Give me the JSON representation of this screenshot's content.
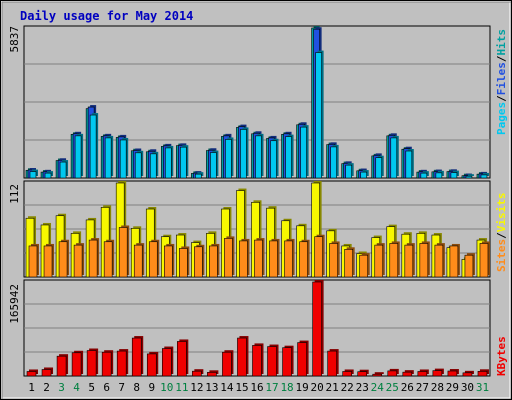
{
  "chart_data": {
    "type": "bar",
    "title": "Daily usage for May 2014",
    "categories": [
      "1",
      "2",
      "3",
      "4",
      "5",
      "6",
      "7",
      "8",
      "9",
      "10",
      "11",
      "12",
      "13",
      "14",
      "15",
      "16",
      "17",
      "18",
      "19",
      "20",
      "21",
      "22",
      "23",
      "24",
      "25",
      "26",
      "27",
      "28",
      "29",
      "30",
      "31"
    ],
    "weekend_days": [
      "3",
      "4",
      "10",
      "11",
      "17",
      "18",
      "24",
      "25",
      "31"
    ],
    "panels": [
      {
        "id": "hits",
        "ymax": 5837,
        "ytick_label": "5837",
        "series": [
          {
            "name": "Hits",
            "color": "#00a0a0",
            "values": [
              300,
              230,
              680,
              1700,
              2700,
              1620,
              1580,
              1060,
              1020,
              1230,
              1260,
              180,
              1070,
              1620,
              1970,
              1720,
              1540,
              1700,
              2070,
              5837,
              1300,
              560,
              280,
              860,
              1640,
              1120,
              230,
              240,
              250,
              90,
              150
            ]
          },
          {
            "name": "Files",
            "color": "#2050e0",
            "values": [
              310,
              240,
              690,
              1720,
              2760,
              1640,
              1600,
              1070,
              1040,
              1250,
              1270,
              190,
              1080,
              1640,
              2000,
              1740,
              1560,
              1720,
              2090,
              5790,
              1310,
              570,
              290,
              880,
              1660,
              1140,
              240,
              250,
              260,
              95,
              160
            ]
          },
          {
            "name": "Pages",
            "color": "#00c8f0",
            "values": [
              250,
              190,
              620,
              1640,
              2450,
              1560,
              1480,
              980,
              940,
              1170,
              1200,
              150,
              990,
              1500,
              1890,
              1640,
              1450,
              1610,
              1980,
              4880,
              1210,
              500,
              230,
              790,
              1560,
              1050,
              190,
              200,
              210,
              70,
              120
            ]
          }
        ],
        "legend": [
          "Pages",
          "/",
          "Files",
          "/",
          "Hits"
        ],
        "legend_colors": [
          "#00c8f0",
          "#000000",
          "#2050e0",
          "#000000",
          "#00a0a0"
        ]
      },
      {
        "id": "visits",
        "ymax": 112,
        "ytick_label": "112",
        "series": [
          {
            "name": "Visits",
            "color": "#f8f800",
            "values": [
              70,
              62,
              73,
              52,
              68,
              83,
              112,
              58,
              81,
              48,
              50,
              41,
              52,
              81,
              103,
              89,
              82,
              67,
              61,
              112,
              55,
              37,
              28,
              47,
              60,
              51,
              52,
              50,
              35,
              21,
              44
            ]
          },
          {
            "name": "Sites",
            "color": "#ff8c1a",
            "values": [
              37,
              37,
              42,
              38,
              44,
              42,
              59,
              38,
              42,
              37,
              34,
              36,
              37,
              46,
              43,
              44,
              43,
              43,
              42,
              48,
              40,
              33,
              26,
              38,
              40,
              38,
              40,
              38,
              37,
              26,
              40
            ]
          }
        ],
        "legend": [
          "Sites",
          "/",
          "Visits"
        ],
        "legend_colors": [
          "#ff8c1a",
          "#000000",
          "#f8f800"
        ]
      },
      {
        "id": "kbytes",
        "ymax": 165942,
        "ytick_label": "165942",
        "series": [
          {
            "name": "KBytes",
            "color": "#f00000",
            "values": [
              8000,
              11500,
              35000,
              41000,
              45000,
              42000,
              44000,
              67000,
              39000,
              48500,
              61000,
              8500,
              6500,
              42000,
              67000,
              54000,
              52000,
              50000,
              59000,
              165942,
              44000,
              8000,
              7600,
              3200,
              9000,
              6800,
              8000,
              9500,
              8800,
              5600,
              8300
            ]
          }
        ],
        "legend": [
          "KBytes"
        ],
        "legend_colors": [
          "#f00000"
        ]
      }
    ]
  }
}
